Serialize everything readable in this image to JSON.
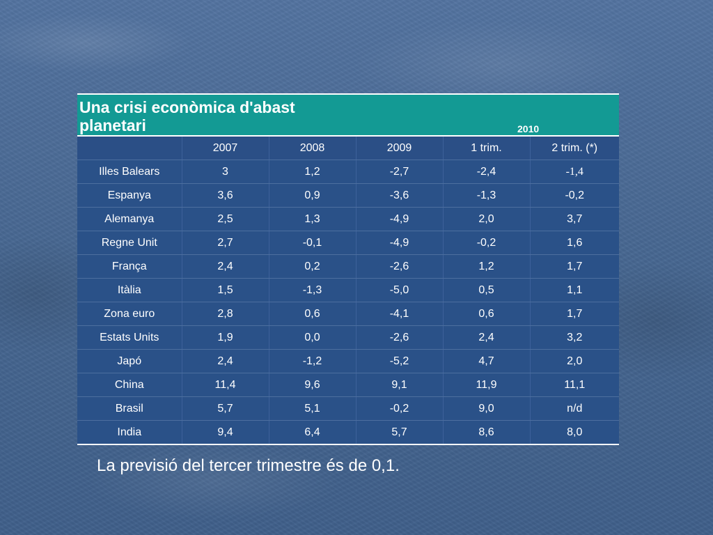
{
  "title": "Una crisi econòmica d'abast planetari",
  "year_group": "2010",
  "columns": [
    "",
    "2007",
    "2008",
    "2009",
    "1 trim.",
    "2 trim. (*)"
  ],
  "rows": [
    [
      "Illes Balears",
      "3",
      "1,2",
      "-2,7",
      "-2,4",
      "-1,4"
    ],
    [
      "Espanya",
      "3,6",
      "0,9",
      "-3,6",
      "-1,3",
      "-0,2"
    ],
    [
      "Alemanya",
      "2,5",
      "1,3",
      "-4,9",
      "2,0",
      "3,7"
    ],
    [
      "Regne Unit",
      "2,7",
      "-0,1",
      "-4,9",
      "-0,2",
      "1,6"
    ],
    [
      "França",
      "2,4",
      "0,2",
      "-2,6",
      "1,2",
      "1,7"
    ],
    [
      "Itàlia",
      "1,5",
      "-1,3",
      "-5,0",
      "0,5",
      "1,1"
    ],
    [
      "Zona euro",
      "2,8",
      "0,6",
      "-4,1",
      "0,6",
      "1,7"
    ],
    [
      "Estats Units",
      "1,9",
      "0,0",
      "-2,6",
      "2,4",
      "3,2"
    ],
    [
      "Japó",
      "2,4",
      "-1,2",
      "-5,2",
      "4,7",
      "2,0"
    ],
    [
      "China",
      "11,4",
      "9,6",
      "9,1",
      "11,9",
      "11,1"
    ],
    [
      "Brasil",
      "5,7",
      "5,1",
      "-0,2",
      "9,0",
      "n/d"
    ],
    [
      "India",
      "9,4",
      "6,4",
      "5,7",
      "8,6",
      "8,0"
    ]
  ],
  "footnote": "La previsió del tercer trimestre és de 0,1.",
  "colors": {
    "title_band": "#139a94",
    "table_body": "#2a5188",
    "background": "#4b6a93",
    "text": "#ffffff"
  }
}
